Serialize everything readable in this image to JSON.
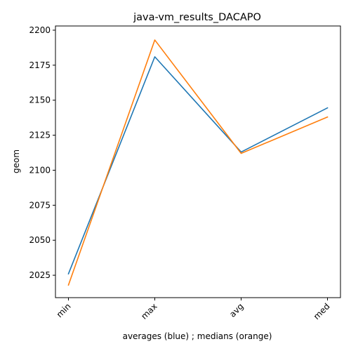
{
  "chart_data": {
    "type": "line",
    "title": "java-vm_results_DACAPO",
    "xlabel": "averages (blue) ; medians (orange)",
    "ylabel": "geom",
    "categories": [
      "min",
      "max",
      "avg",
      "med"
    ],
    "ylim": [
      2009,
      2203
    ],
    "yticks": [
      2025,
      2050,
      2075,
      2100,
      2125,
      2150,
      2175,
      2200
    ],
    "grid": false,
    "series": [
      {
        "color": "#1f77b4",
        "values": [
          2026,
          2181,
          2113,
          2144.5
        ]
      },
      {
        "color": "#ff7f0e",
        "values": [
          2018,
          2193,
          2112,
          2138
        ]
      }
    ]
  }
}
